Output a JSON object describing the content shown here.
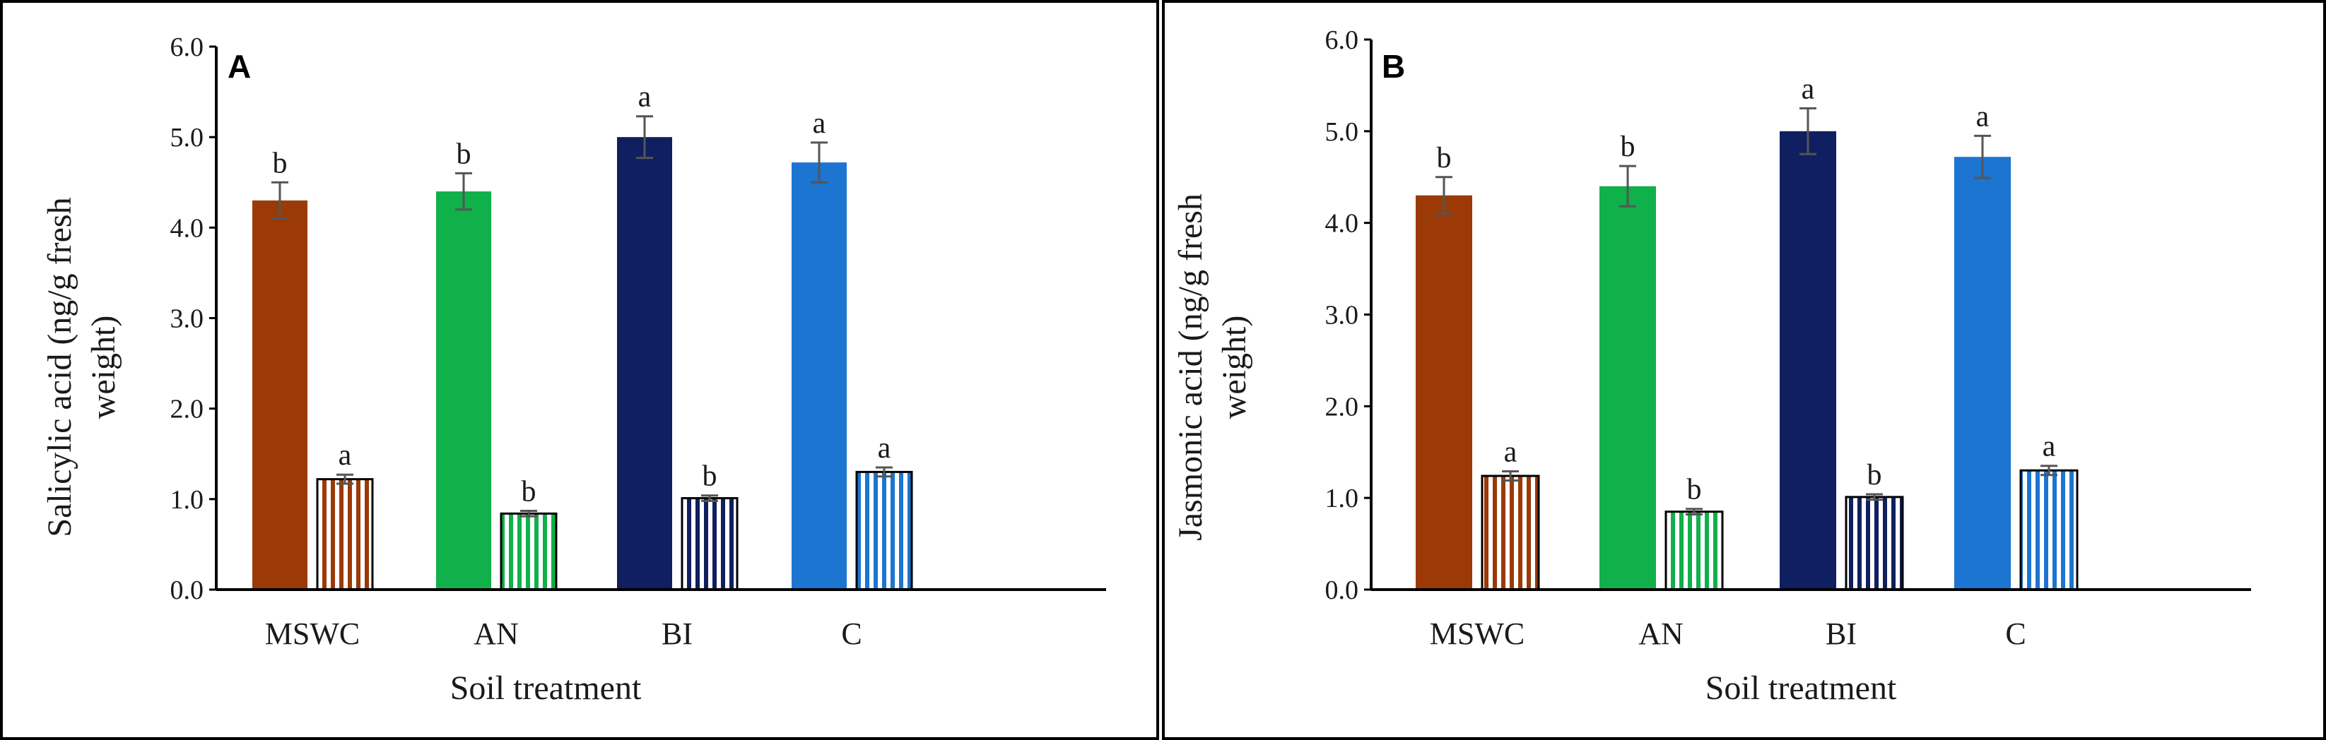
{
  "chart_data": [
    {
      "type": "bar",
      "panel_label": "A",
      "xlabel": "Soil treatment",
      "ylabel": "Salicylic acid (ng/g fresh weight)",
      "ylabel_lines": [
        "Salicylic acid (ng/g fresh",
        "weight)"
      ],
      "ylim": [
        0,
        6
      ],
      "yticks": [
        "0.0",
        "1.0",
        "2.0",
        "3.0",
        "4.0",
        "5.0",
        "6.0"
      ],
      "categories": [
        "MSWC",
        "AN",
        "BI",
        "C"
      ],
      "colors": [
        "#9b3a06",
        "#10b04a",
        "#0f1f5f",
        "#1c75d0"
      ],
      "series": [
        {
          "name": "solid",
          "pattern": "solid",
          "values": [
            4.3,
            4.4,
            5.0,
            4.72
          ],
          "errors": [
            0.2,
            0.2,
            0.23,
            0.22
          ],
          "labels": [
            "b",
            "b",
            "a",
            "a"
          ]
        },
        {
          "name": "striped",
          "pattern": "vertical-stripes",
          "values": [
            1.22,
            0.84,
            1.01,
            1.3
          ],
          "errors": [
            0.05,
            0.03,
            0.03,
            0.05
          ],
          "labels": [
            "a",
            "b",
            "b",
            "a"
          ]
        }
      ]
    },
    {
      "type": "bar",
      "panel_label": "B",
      "xlabel": "Soil treatment",
      "ylabel": "Jasmonic acid (ng/g fresh weight)",
      "ylabel_lines": [
        "Jasmonic acid (ng/g fresh",
        "weight)"
      ],
      "ylim": [
        0,
        6
      ],
      "yticks": [
        "0.0",
        "1.0",
        "2.0",
        "3.0",
        "4.0",
        "5.0",
        "6.0"
      ],
      "categories": [
        "MSWC",
        "AN",
        "BI",
        "C"
      ],
      "colors": [
        "#9b3a06",
        "#10b04a",
        "#0f1f5f",
        "#1c75d0"
      ],
      "series": [
        {
          "name": "solid",
          "pattern": "solid",
          "values": [
            4.3,
            4.4,
            5.0,
            4.72
          ],
          "errors": [
            0.2,
            0.22,
            0.25,
            0.23
          ],
          "labels": [
            "b",
            "b",
            "a",
            "a"
          ]
        },
        {
          "name": "striped",
          "pattern": "vertical-stripes",
          "values": [
            1.24,
            0.85,
            1.01,
            1.3
          ],
          "errors": [
            0.05,
            0.03,
            0.03,
            0.05
          ],
          "labels": [
            "a",
            "b",
            "b",
            "a"
          ]
        }
      ]
    }
  ]
}
